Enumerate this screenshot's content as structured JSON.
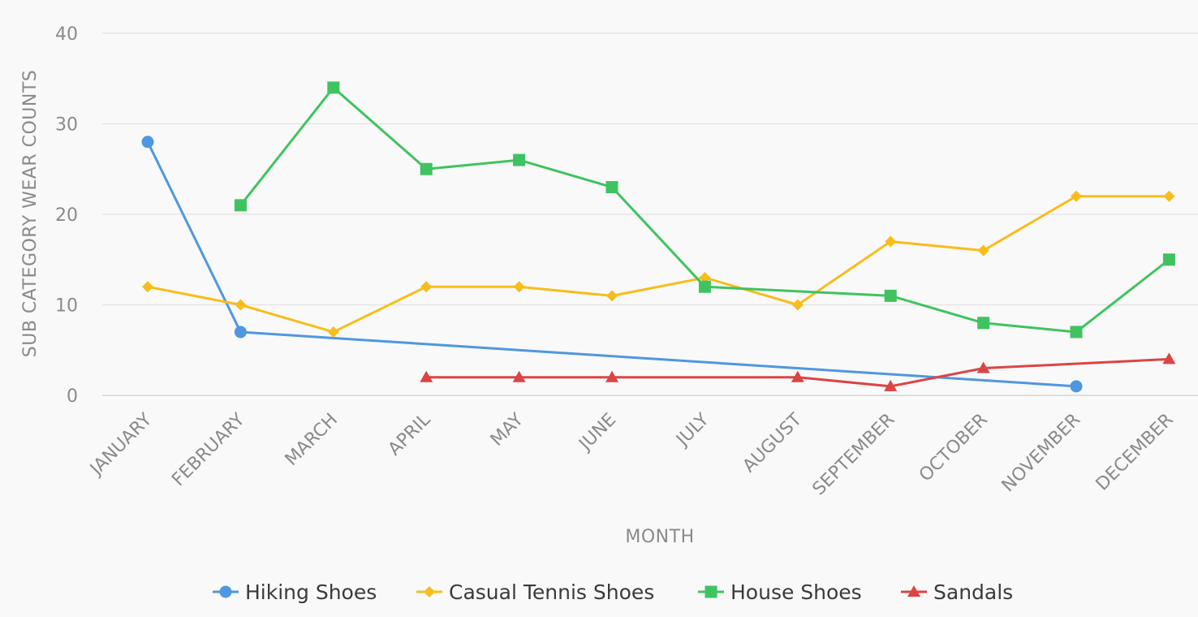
{
  "chart_data": {
    "type": "line",
    "title": "",
    "xlabel": "MONTH",
    "ylabel": "SUB CATEGORY WEAR COUNTS",
    "ylim": [
      0,
      40
    ],
    "yticks": [
      0,
      10,
      20,
      30,
      40
    ],
    "grid": true,
    "legend_position": "bottom",
    "categories": [
      "JANUARY",
      "FEBRUARY",
      "MARCH",
      "APRIL",
      "MAY",
      "JUNE",
      "JULY",
      "AUGUST",
      "SEPTEMBER",
      "OCTOBER",
      "NOVEMBER",
      "DECEMBER"
    ],
    "series": [
      {
        "name": "Hiking Shoes",
        "color": "#4f97e0",
        "marker": "circle",
        "values": [
          28,
          7,
          null,
          null,
          null,
          null,
          null,
          null,
          null,
          null,
          1,
          null
        ]
      },
      {
        "name": "Casual Tennis Shoes",
        "color": "#f7bd1b",
        "marker": "diamond",
        "values": [
          12,
          10,
          7,
          12,
          12,
          11,
          13,
          10,
          17,
          16,
          22,
          22
        ]
      },
      {
        "name": "House Shoes",
        "color": "#3fc360",
        "marker": "square",
        "values": [
          null,
          21,
          34,
          25,
          26,
          23,
          12,
          null,
          11,
          8,
          7,
          15
        ]
      },
      {
        "name": "Sandals",
        "color": "#dc4444",
        "marker": "triangle",
        "values": [
          null,
          null,
          null,
          2,
          2,
          2,
          null,
          2,
          1,
          3,
          null,
          4
        ]
      }
    ]
  }
}
